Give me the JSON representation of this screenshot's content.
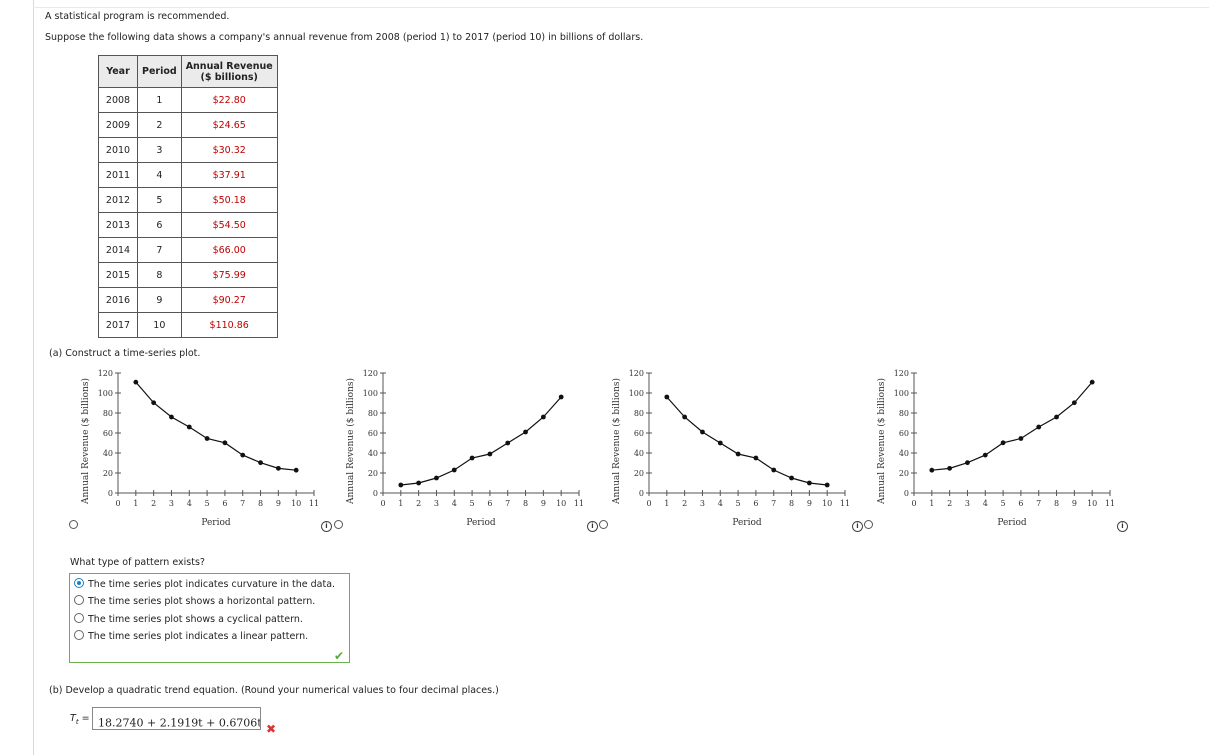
{
  "intro": "A statistical program is recommended.",
  "prompt": "Suppose the following data shows a company's annual revenue from 2008 (period 1) to 2017 (period 10) in billions of dollars.",
  "table": {
    "headers": [
      "Year",
      "Period",
      "Annual Revenue",
      "($ billions)"
    ],
    "rows": [
      {
        "year": "2008",
        "period": "1",
        "revenue": "$22.80"
      },
      {
        "year": "2009",
        "period": "2",
        "revenue": "$24.65"
      },
      {
        "year": "2010",
        "period": "3",
        "revenue": "$30.32"
      },
      {
        "year": "2011",
        "period": "4",
        "revenue": "$37.91"
      },
      {
        "year": "2012",
        "period": "5",
        "revenue": "$50.18"
      },
      {
        "year": "2013",
        "period": "6",
        "revenue": "$54.50"
      },
      {
        "year": "2014",
        "period": "7",
        "revenue": "$66.00"
      },
      {
        "year": "2015",
        "period": "8",
        "revenue": "$75.99"
      },
      {
        "year": "2016",
        "period": "9",
        "revenue": "$90.27"
      },
      {
        "year": "2017",
        "period": "10",
        "revenue": "$110.86"
      }
    ]
  },
  "part_a": "(a)  Construct a time-series plot.",
  "chart_data": [
    {
      "type": "line",
      "xlabel": "Period",
      "ylabel": "Annual Revenue ($ billions)",
      "xlim": [
        0,
        11
      ],
      "ylim": [
        0,
        120
      ],
      "x": [
        1,
        2,
        3,
        4,
        5,
        6,
        7,
        8,
        9,
        10
      ],
      "y": [
        110.86,
        90.27,
        75.99,
        66.0,
        54.5,
        50.18,
        37.91,
        30.32,
        24.65,
        22.8
      ]
    },
    {
      "type": "line",
      "xlabel": "Period",
      "ylabel": "Annual Revenue ($ billions)",
      "xlim": [
        0,
        11
      ],
      "ylim": [
        0,
        120
      ],
      "x": [
        1,
        2,
        3,
        4,
        5,
        6,
        7,
        8,
        9,
        10
      ],
      "y": [
        8,
        10,
        15,
        23,
        35,
        39,
        50,
        61,
        76,
        96
      ]
    },
    {
      "type": "line",
      "xlabel": "Period",
      "ylabel": "Annual Revenue ($ billions)",
      "xlim": [
        0,
        11
      ],
      "ylim": [
        0,
        120
      ],
      "x": [
        1,
        2,
        3,
        4,
        5,
        6,
        7,
        8,
        9,
        10
      ],
      "y": [
        96,
        76,
        61,
        50,
        39,
        35,
        23,
        15,
        10,
        8
      ]
    },
    {
      "type": "line",
      "xlabel": "Period",
      "ylabel": "Annual Revenue ($ billions)",
      "xlim": [
        0,
        11
      ],
      "ylim": [
        0,
        120
      ],
      "x": [
        1,
        2,
        3,
        4,
        5,
        6,
        7,
        8,
        9,
        10
      ],
      "y": [
        22.8,
        24.65,
        30.32,
        37.91,
        50.18,
        54.5,
        66.0,
        75.99,
        90.27,
        110.86
      ]
    }
  ],
  "axis": {
    "yticks": [
      "0",
      "20",
      "40",
      "60",
      "80",
      "100",
      "120"
    ],
    "xticks": [
      "0",
      "1",
      "2",
      "3",
      "4",
      "5",
      "6",
      "7",
      "8",
      "9",
      "10",
      "11"
    ]
  },
  "question": "What type of pattern exists?",
  "options": [
    {
      "label": "The time series plot indicates curvature in the data.",
      "selected": true
    },
    {
      "label": "The time series plot shows a horizontal pattern.",
      "selected": false
    },
    {
      "label": "The time series plot shows a cyclical pattern.",
      "selected": false
    },
    {
      "label": "The time series plot indicates a linear pattern.",
      "selected": false
    }
  ],
  "part_b": "(b)  Develop a quadratic trend equation. (Round your numerical values to four decimal places.)",
  "trend_label": "T",
  "trend_sub": "t",
  "trend_eq": "= ",
  "answer": "18.2740 + 2.1919t + 0.6706t",
  "answer_exp": "2",
  "colors": {
    "correct": "#5aa83c",
    "wrong": "#d33333",
    "revenue_text": "#c00000",
    "selected_radio": "#1c7fc4"
  }
}
